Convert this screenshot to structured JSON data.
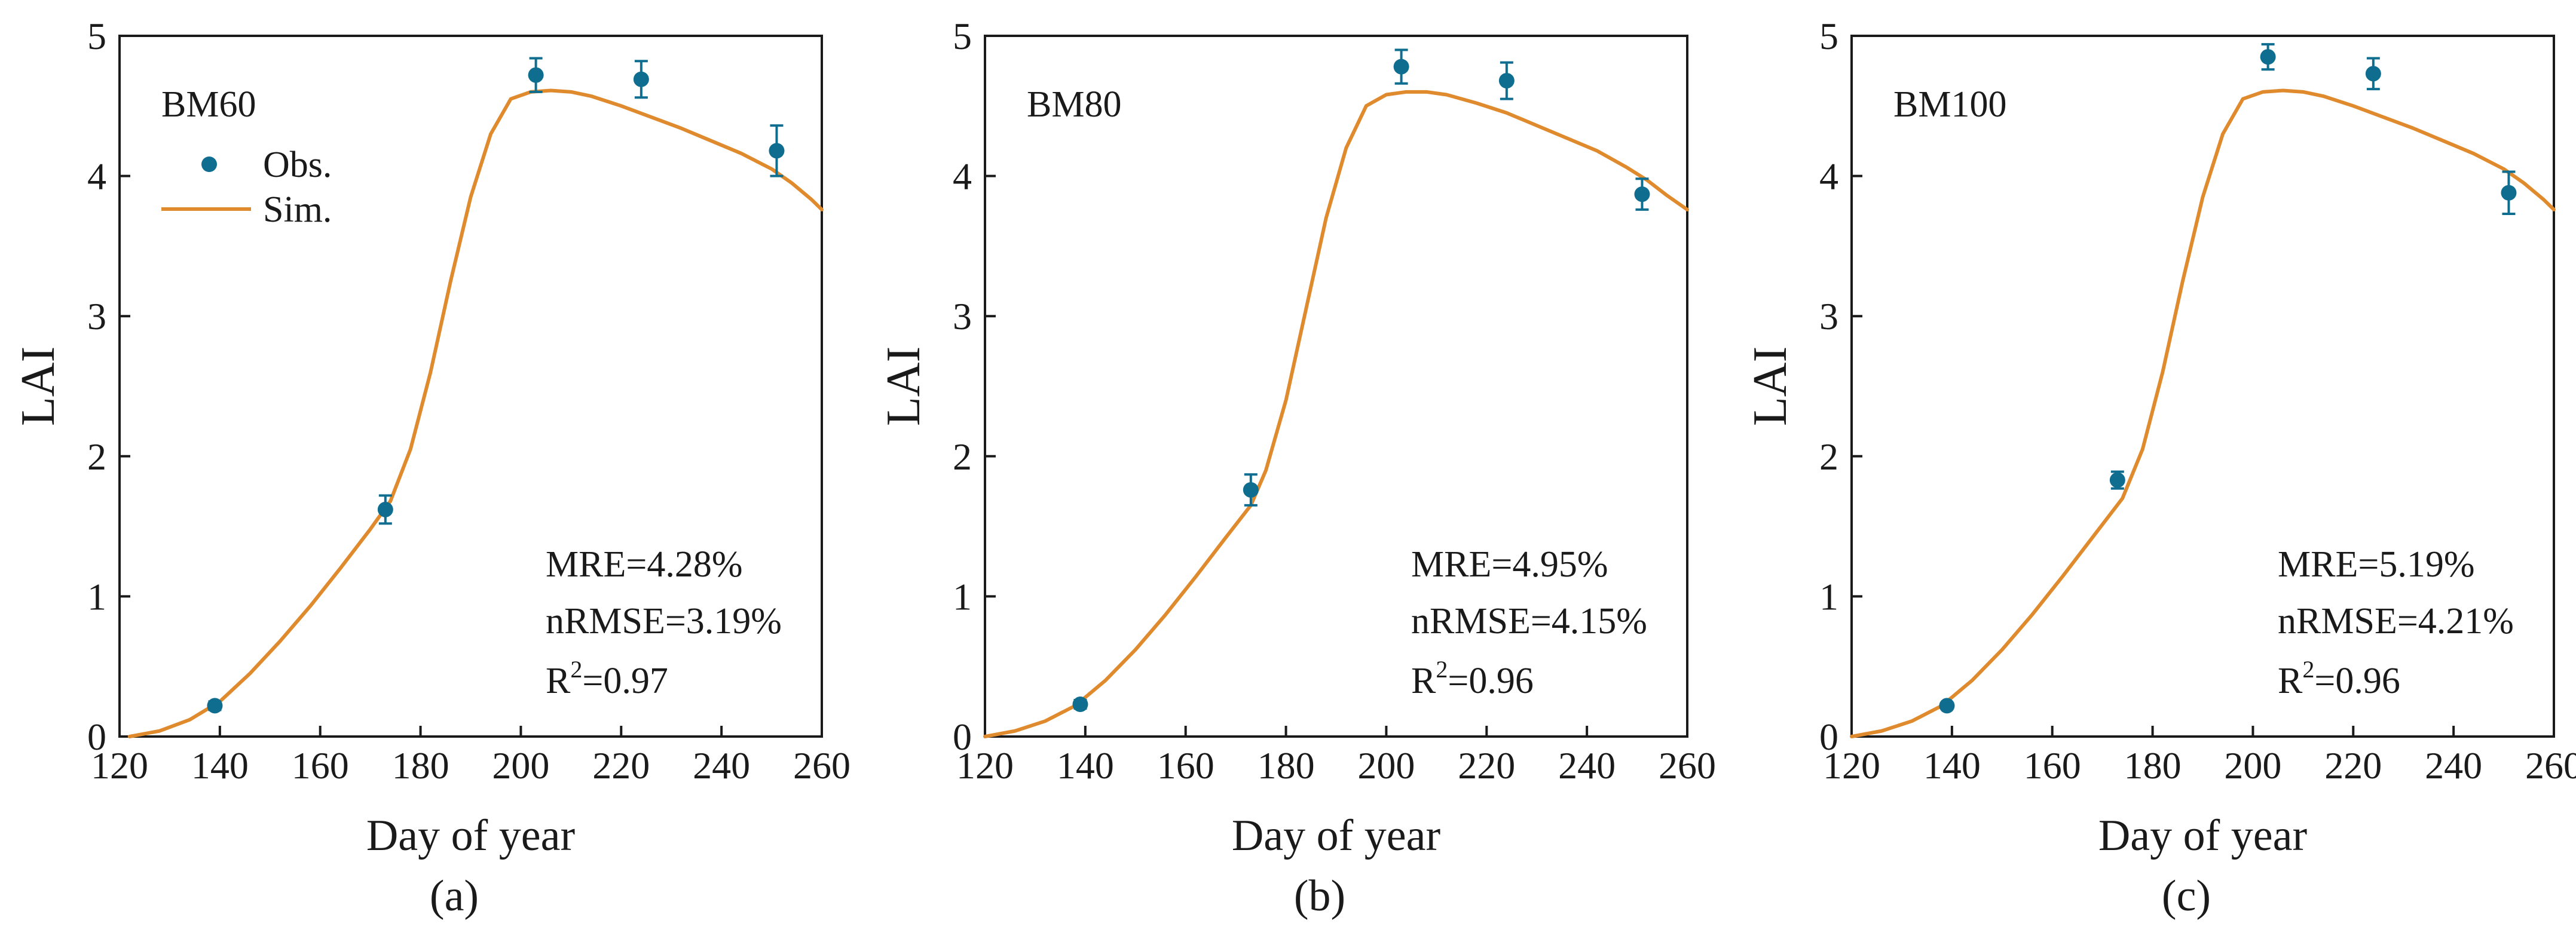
{
  "colors": {
    "obs": "#0f6e8f",
    "sim": "#e08a2e",
    "axis": "#1a1a1a"
  },
  "chart_data": [
    {
      "type": "line",
      "panel_label": "(a)",
      "annotation": "BM60",
      "xlabel": "Day of year",
      "ylabel": "LAI",
      "xlim": [
        120,
        260
      ],
      "ylim": [
        0,
        5
      ],
      "xticks": [
        120,
        140,
        160,
        180,
        200,
        220,
        240,
        260
      ],
      "yticks": [
        0,
        1,
        2,
        3,
        4,
        5
      ],
      "legend": {
        "position": "top-left",
        "entries": [
          "Obs.",
          "Sim."
        ]
      },
      "series": [
        {
          "name": "Obs.",
          "type": "scatter",
          "x": [
            139,
            173,
            203,
            224,
            251
          ],
          "y": [
            0.22,
            1.62,
            4.72,
            4.69,
            4.18
          ],
          "err": [
            0.03,
            0.1,
            0.12,
            0.13,
            0.18
          ]
        },
        {
          "name": "Sim.",
          "type": "line",
          "x": [
            122,
            128,
            134,
            140,
            146,
            152,
            158,
            164,
            170,
            174,
            178,
            182,
            186,
            190,
            194,
            198,
            202,
            206,
            210,
            214,
            220,
            226,
            232,
            238,
            244,
            250,
            254,
            258,
            260
          ],
          "y": [
            0.0,
            0.04,
            0.12,
            0.25,
            0.45,
            0.68,
            0.93,
            1.2,
            1.48,
            1.68,
            2.05,
            2.6,
            3.25,
            3.85,
            4.3,
            4.55,
            4.6,
            4.61,
            4.6,
            4.57,
            4.5,
            4.42,
            4.34,
            4.25,
            4.16,
            4.05,
            3.95,
            3.83,
            3.76
          ]
        }
      ],
      "stats": {
        "mre": "MRE=4.28%",
        "nrmse": "nRMSE=3.19%",
        "r2_prefix": "R",
        "r2_sup": "2",
        "r2_value": "=0.97"
      }
    },
    {
      "type": "line",
      "panel_label": "(b)",
      "annotation": "BM80",
      "xlabel": "Day of year",
      "ylabel": "LAI",
      "xlim": [
        120,
        260
      ],
      "ylim": [
        0,
        5
      ],
      "xticks": [
        120,
        140,
        160,
        180,
        200,
        220,
        240,
        260
      ],
      "yticks": [
        0,
        1,
        2,
        3,
        4,
        5
      ],
      "series": [
        {
          "name": "Obs.",
          "type": "scatter",
          "x": [
            139,
            173,
            203,
            224,
            251
          ],
          "y": [
            0.23,
            1.76,
            4.78,
            4.68,
            3.87
          ],
          "err": [
            0.03,
            0.11,
            0.12,
            0.13,
            0.11
          ]
        },
        {
          "name": "Sim.",
          "type": "line",
          "x": [
            120,
            126,
            132,
            138,
            144,
            150,
            156,
            162,
            168,
            173,
            176,
            180,
            184,
            188,
            192,
            196,
            200,
            204,
            208,
            212,
            218,
            224,
            230,
            236,
            242,
            248,
            252,
            256,
            260
          ],
          "y": [
            0.0,
            0.04,
            0.11,
            0.22,
            0.4,
            0.62,
            0.87,
            1.14,
            1.42,
            1.65,
            1.9,
            2.4,
            3.05,
            3.7,
            4.2,
            4.5,
            4.58,
            4.6,
            4.6,
            4.58,
            4.52,
            4.45,
            4.36,
            4.27,
            4.18,
            4.06,
            3.97,
            3.86,
            3.76
          ]
        }
      ],
      "stats": {
        "mre": "MRE=4.95%",
        "nrmse": "nRMSE=4.15%",
        "r2_prefix": "R",
        "r2_sup": "2",
        "r2_value": "=0.96"
      }
    },
    {
      "type": "line",
      "panel_label": "(c)",
      "annotation": "BM100",
      "xlabel": "Day of year",
      "ylabel": "LAI",
      "xlim": [
        120,
        260
      ],
      "ylim": [
        0,
        5
      ],
      "xticks": [
        120,
        140,
        160,
        180,
        200,
        220,
        240,
        260
      ],
      "yticks": [
        0,
        1,
        2,
        3,
        4,
        5
      ],
      "series": [
        {
          "name": "Obs.",
          "type": "scatter",
          "x": [
            139,
            173,
            203,
            224,
            251
          ],
          "y": [
            0.22,
            1.83,
            4.85,
            4.73,
            3.88
          ],
          "err": [
            0.02,
            0.06,
            0.09,
            0.11,
            0.15
          ]
        },
        {
          "name": "Sim.",
          "type": "line",
          "x": [
            120,
            126,
            132,
            138,
            144,
            150,
            156,
            162,
            168,
            174,
            178,
            182,
            186,
            190,
            194,
            198,
            202,
            206,
            210,
            214,
            220,
            226,
            232,
            238,
            244,
            250,
            254,
            258,
            260
          ],
          "y": [
            0.0,
            0.04,
            0.11,
            0.22,
            0.4,
            0.62,
            0.87,
            1.14,
            1.42,
            1.7,
            2.05,
            2.6,
            3.25,
            3.85,
            4.3,
            4.55,
            4.6,
            4.61,
            4.6,
            4.57,
            4.5,
            4.42,
            4.34,
            4.25,
            4.16,
            4.05,
            3.95,
            3.83,
            3.76
          ]
        }
      ],
      "stats": {
        "mre": "MRE=5.19%",
        "nrmse": "nRMSE=4.21%",
        "r2_prefix": "R",
        "r2_sup": "2",
        "r2_value": "=0.96"
      }
    }
  ]
}
